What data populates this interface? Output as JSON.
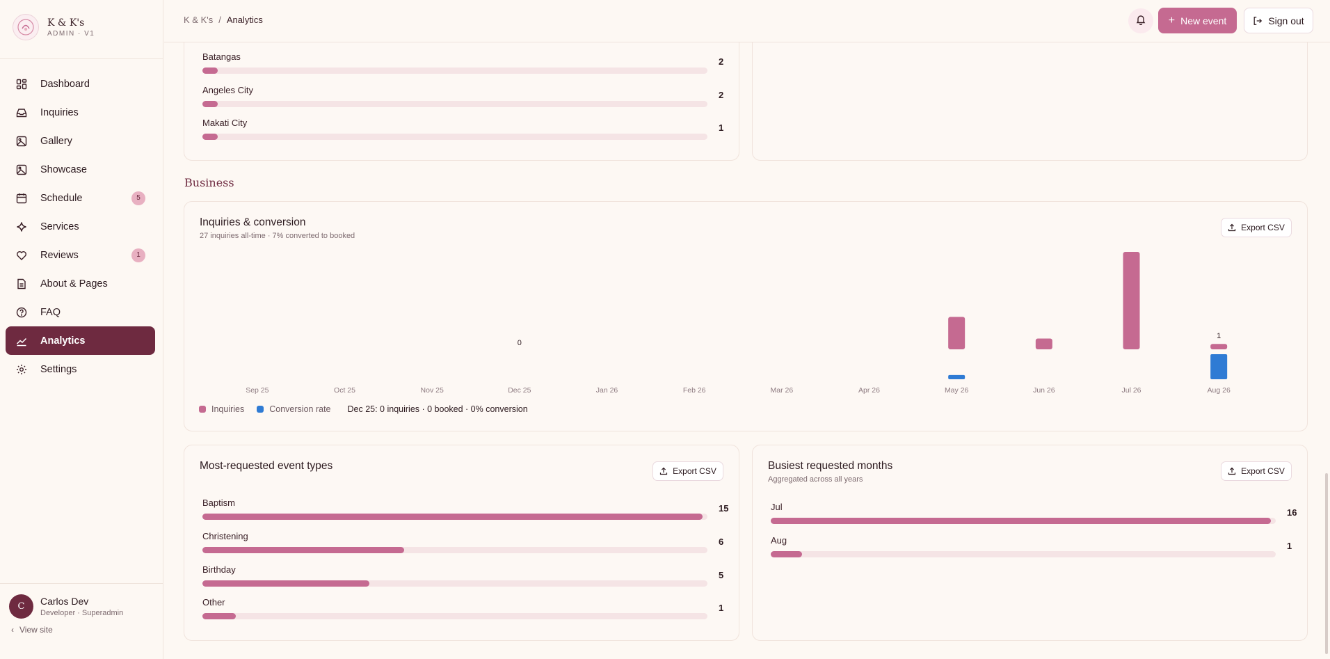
{
  "brand": {
    "name": "K & K's",
    "sub": "ADMIN · V1"
  },
  "nav": [
    {
      "label": "Dashboard",
      "icon": "dashboard-icon"
    },
    {
      "label": "Inquiries",
      "icon": "inbox-icon"
    },
    {
      "label": "Gallery",
      "icon": "image-icon"
    },
    {
      "label": "Showcase",
      "icon": "image-icon"
    },
    {
      "label": "Schedule",
      "icon": "calendar-icon",
      "badge": "5"
    },
    {
      "label": "Services",
      "icon": "sparkle-icon"
    },
    {
      "label": "Reviews",
      "icon": "heart-icon",
      "badge": "1"
    },
    {
      "label": "About & Pages",
      "icon": "document-icon"
    },
    {
      "label": "FAQ",
      "icon": "help-circle-icon"
    },
    {
      "label": "Analytics",
      "icon": "chart-icon",
      "active": true
    },
    {
      "label": "Settings",
      "icon": "gear-icon"
    }
  ],
  "user": {
    "initial": "C",
    "name": "Carlos Dev",
    "role": "Developer · Superadmin",
    "view_site": "View site"
  },
  "topbar": {
    "crumb_root": "K & K's",
    "crumb_sep": "/",
    "crumb_current": "Analytics",
    "new_event": "New event",
    "sign_out": "Sign out"
  },
  "locations": {
    "rows": [
      {
        "label": "Batangas",
        "value": 2,
        "fraction": 0.03
      },
      {
        "label": "Angeles City",
        "value": 2,
        "fraction": 0.03
      },
      {
        "label": "Makati City",
        "value": 1,
        "fraction": 0.03
      }
    ]
  },
  "section_business": "Business",
  "inquiries_chart": {
    "title": "Inquiries & conversion",
    "subtitle": "27 inquiries all-time · 7% converted to booked",
    "export": "Export CSV",
    "legend_inquiries": "Inquiries",
    "legend_conversion": "Conversion rate",
    "tooltip": "Dec 25: 0 inquiries · 0 booked · 0% conversion"
  },
  "chart_data": {
    "type": "bar",
    "categories": [
      "Sep 25",
      "Oct 25",
      "Nov 25",
      "Dec 25",
      "Jan 26",
      "Feb 26",
      "Mar 26",
      "Apr 26",
      "May 26",
      "Jun 26",
      "Jul 26",
      "Aug 26"
    ],
    "series": [
      {
        "name": "Inquiries",
        "color": "#c56a91",
        "values": [
          0,
          0,
          0,
          0,
          0,
          0,
          0,
          0,
          6,
          2,
          18,
          1
        ]
      },
      {
        "name": "Conversion rate",
        "color": "#2f7bd4",
        "values": [
          0,
          0,
          0,
          0,
          0,
          0,
          0,
          0,
          17,
          0,
          0,
          100
        ]
      }
    ],
    "data_labels": [
      {
        "category": "Dec 25",
        "text": "0"
      },
      {
        "category": "Aug 26",
        "text": "1"
      }
    ]
  },
  "event_types": {
    "title": "Most-requested event types",
    "export": "Export CSV",
    "rows": [
      {
        "label": "Baptism",
        "value": 15,
        "fraction": 0.99
      },
      {
        "label": "Christening",
        "value": 6,
        "fraction": 0.4
      },
      {
        "label": "Birthday",
        "value": 5,
        "fraction": 0.33
      },
      {
        "label": "Other",
        "value": 1,
        "fraction": 0.066
      }
    ]
  },
  "busiest_months": {
    "title": "Busiest requested months",
    "subtitle": "Aggregated across all years",
    "export": "Export CSV",
    "rows": [
      {
        "label": "Jul",
        "value": 16,
        "fraction": 0.99
      },
      {
        "label": "Aug",
        "value": 1,
        "fraction": 0.062
      }
    ]
  }
}
